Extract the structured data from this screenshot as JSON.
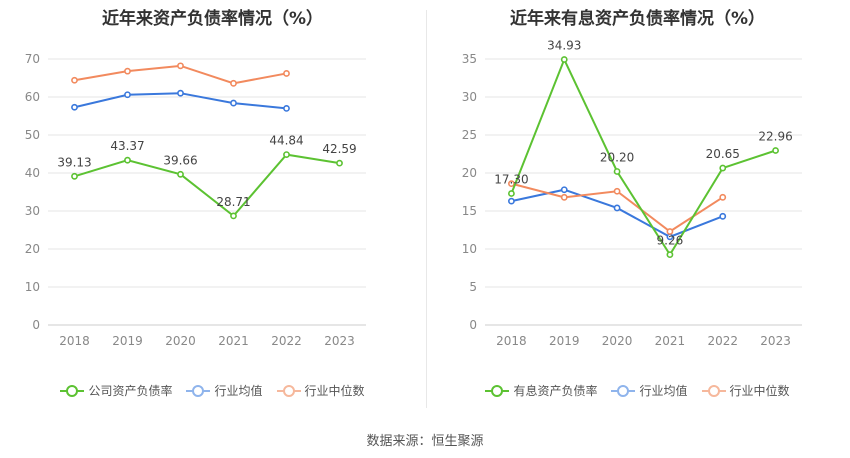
{
  "source": "数据来源：恒生聚源",
  "chart_data": [
    {
      "type": "line",
      "title": "近年来资产负债率情况（%）",
      "x": [
        "2018",
        "2019",
        "2020",
        "2021",
        "2022",
        "2023"
      ],
      "ylim": [
        0,
        70
      ],
      "yticks": [
        0,
        10,
        20,
        30,
        40,
        50,
        60,
        70
      ],
      "grid": true,
      "legend_position": "bottom",
      "series": [
        {
          "name": "公司资产负债率",
          "color": "#5cc232",
          "values": [
            39.13,
            43.37,
            39.66,
            28.71,
            44.84,
            42.59
          ],
          "labels": [
            "39.13",
            "43.37",
            "39.66",
            "28.71",
            "44.84",
            "42.59"
          ]
        },
        {
          "name": "行业均值",
          "color": "#3a78dc",
          "values": [
            57.3,
            60.6,
            61.0,
            58.4,
            57.0,
            null
          ],
          "labels": null
        },
        {
          "name": "行业中位数",
          "color": "#f28a5e",
          "values": [
            64.4,
            66.8,
            68.2,
            63.6,
            66.2,
            null
          ],
          "labels": null
        }
      ]
    },
    {
      "type": "line",
      "title": "近年来有息资产负债率情况（%）",
      "x": [
        "2018",
        "2019",
        "2020",
        "2021",
        "2022",
        "2023"
      ],
      "ylim": [
        0,
        35
      ],
      "yticks": [
        0,
        5,
        10,
        15,
        20,
        25,
        30,
        35
      ],
      "grid": true,
      "legend_position": "bottom",
      "series": [
        {
          "name": "有息资产负债率",
          "color": "#5cc232",
          "values": [
            17.3,
            34.93,
            20.2,
            9.26,
            20.65,
            22.96
          ],
          "labels": [
            "17.30",
            "34.93",
            "20.20",
            "9.26",
            "20.65",
            "22.96"
          ]
        },
        {
          "name": "行业均值",
          "color": "#3a78dc",
          "values": [
            16.3,
            17.8,
            15.4,
            11.6,
            14.3,
            null
          ],
          "labels": null
        },
        {
          "name": "行业中位数",
          "color": "#f28a5e",
          "values": [
            18.6,
            16.8,
            17.6,
            12.3,
            16.8,
            null
          ],
          "labels": null
        }
      ]
    }
  ]
}
